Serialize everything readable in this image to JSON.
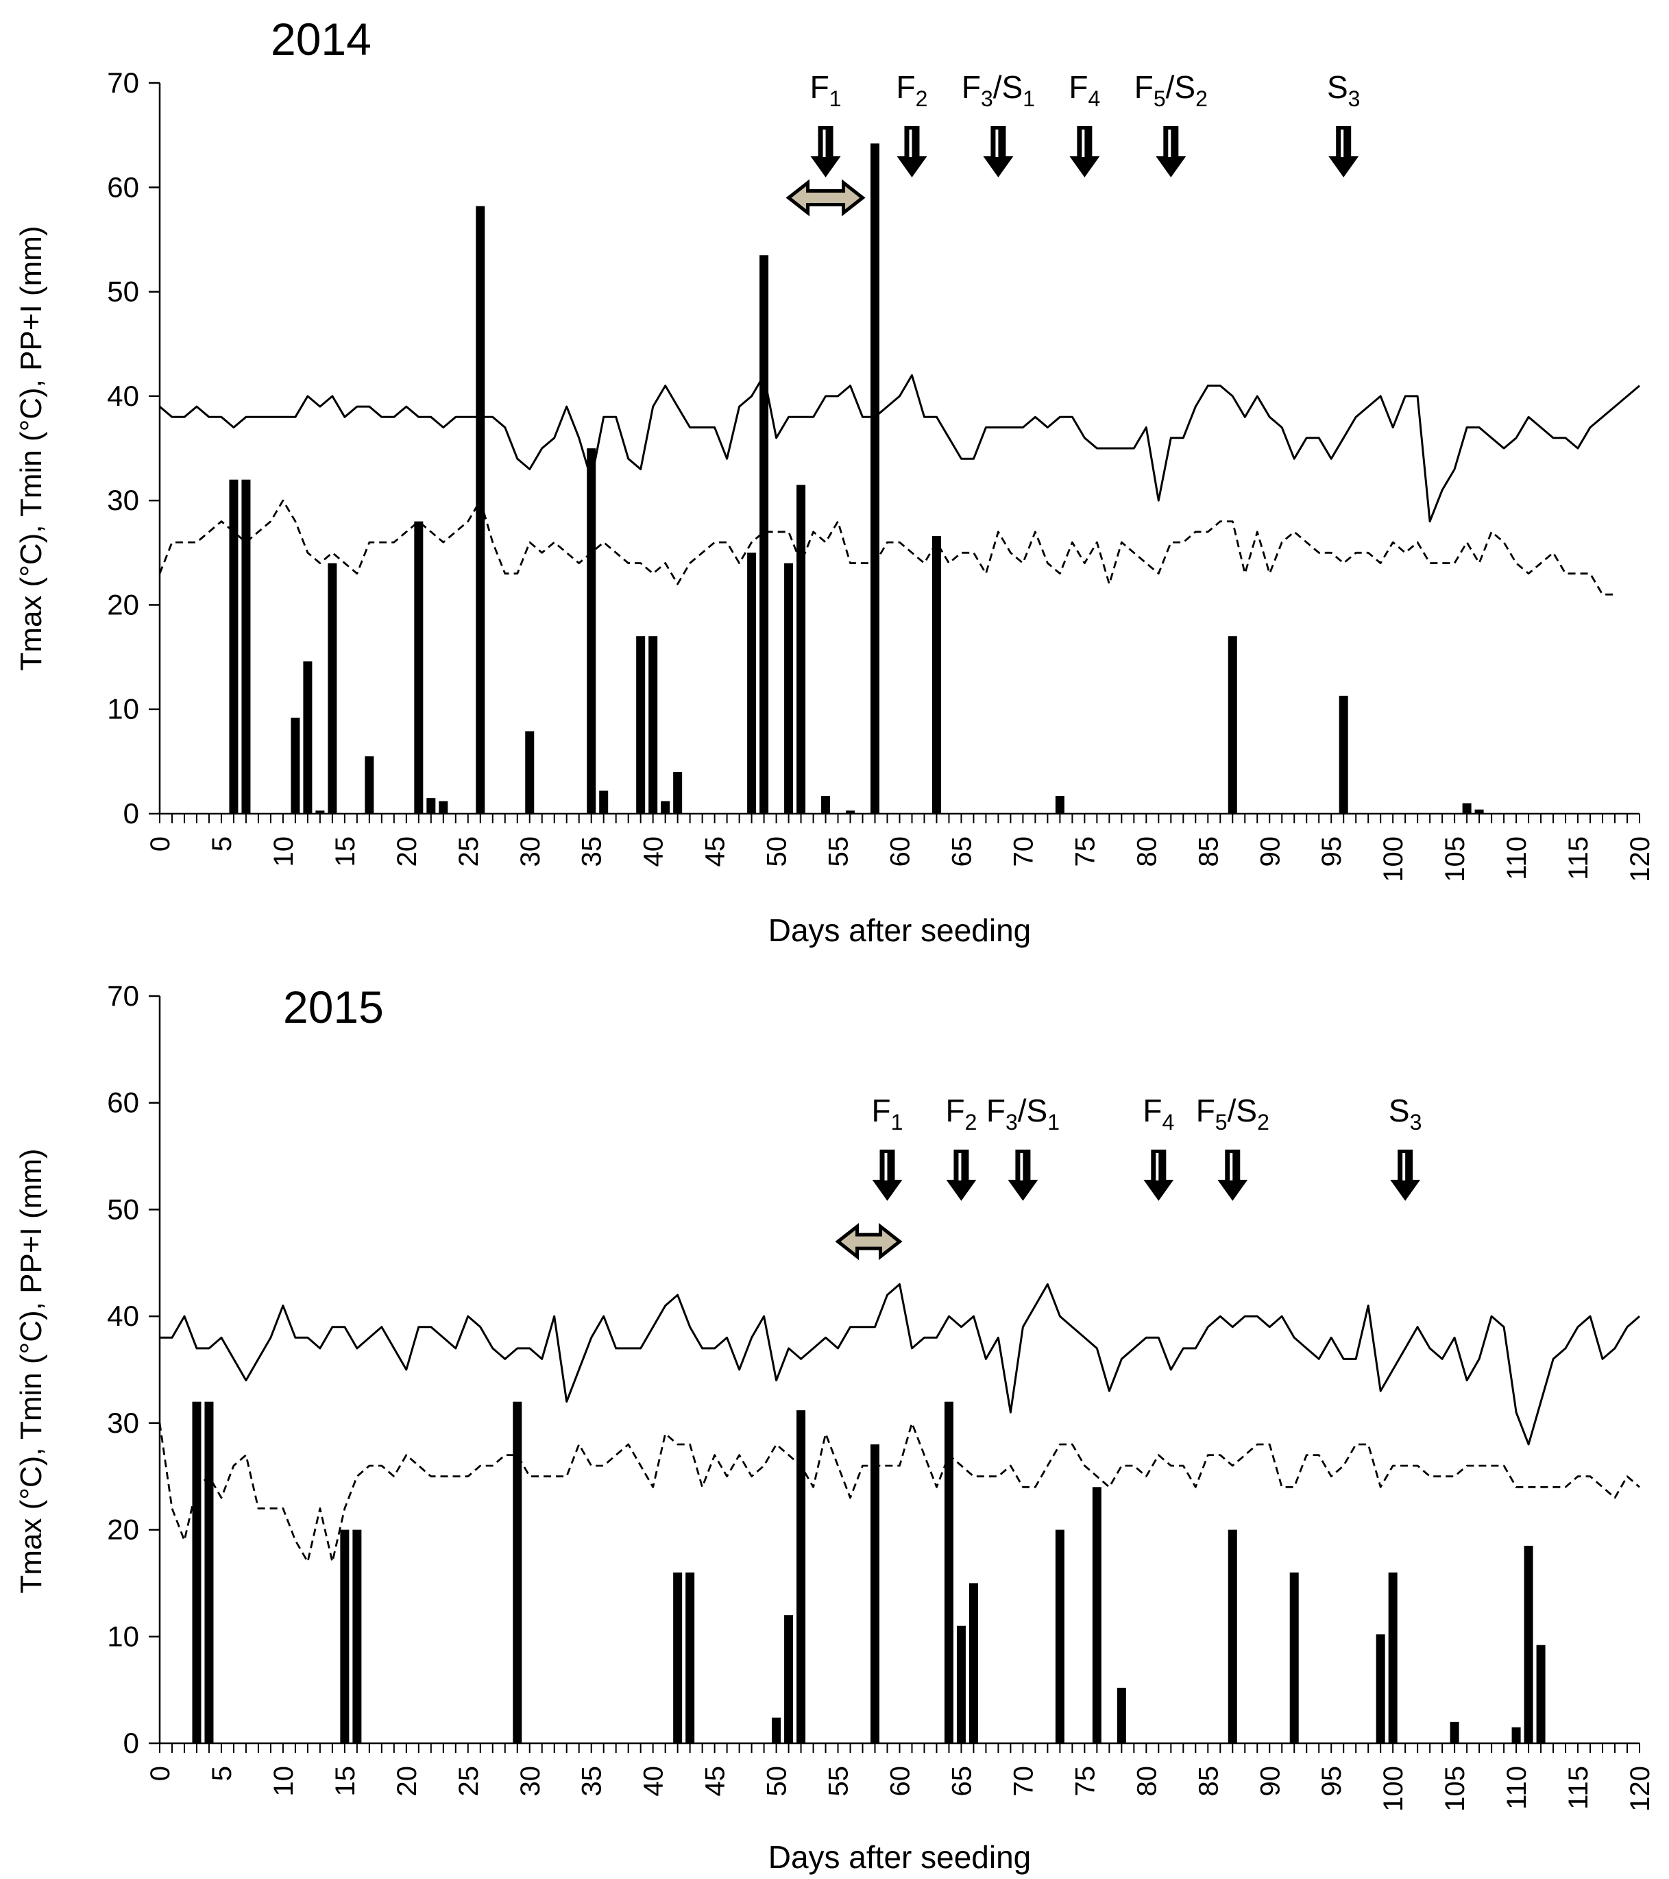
{
  "chart_data": [
    {
      "type": "bar+line",
      "title": "2014",
      "xlabel": "Days after seeding",
      "ylabel": "Tmax (°C), Tmin (°C), PP+I (mm)",
      "xlim": [
        0,
        120
      ],
      "ylim": [
        0,
        70
      ],
      "xticks": [
        "0",
        "5",
        "10",
        "15",
        "20",
        "25",
        "30",
        "35",
        "40",
        "45",
        "50",
        "55",
        "60",
        "65",
        "70",
        "75",
        "80",
        "85",
        "90",
        "95",
        "100",
        "105",
        "110",
        "115",
        "120"
      ],
      "yticks": [
        "0",
        "10",
        "20",
        "30",
        "40",
        "50",
        "60",
        "70"
      ],
      "series": [
        {
          "name": "Tmax",
          "style": "solid line",
          "values": [
            39,
            38,
            38,
            39,
            38,
            38,
            37,
            38,
            38,
            38,
            38,
            38,
            40,
            39,
            40,
            38,
            39,
            39,
            38,
            38,
            39,
            38,
            38,
            37,
            38,
            38,
            38,
            38,
            37,
            34,
            33,
            35,
            36,
            39,
            36,
            32,
            38,
            38,
            34,
            33,
            39,
            41,
            39,
            37,
            37,
            37,
            34,
            39,
            40,
            42,
            36,
            38,
            38,
            38,
            40,
            40,
            41,
            38,
            38,
            39,
            40,
            42,
            38,
            38,
            36,
            34,
            34,
            37,
            37,
            37,
            37,
            38,
            37,
            38,
            38,
            36,
            35,
            35,
            35,
            35,
            37,
            30,
            36,
            36,
            39,
            41,
            41,
            40,
            38,
            40,
            38,
            37,
            34,
            36,
            36,
            34,
            36,
            38,
            39,
            40,
            37,
            40,
            40,
            28,
            31,
            33,
            37,
            37,
            36,
            35,
            36,
            38,
            37,
            36,
            36,
            35,
            37,
            38,
            39,
            40,
            41
          ]
        },
        {
          "name": "Tmin",
          "style": "dashed line",
          "values": [
            23,
            26,
            26,
            26,
            27,
            28,
            27,
            26,
            27,
            28,
            30,
            28,
            25,
            24,
            25,
            24,
            23,
            26,
            26,
            26,
            27,
            28,
            27,
            26,
            27,
            28,
            30,
            26,
            23,
            23,
            26,
            25,
            26,
            25,
            24,
            25,
            26,
            25,
            24,
            24,
            23,
            24,
            22,
            24,
            25,
            26,
            26,
            24,
            26,
            27,
            27,
            27,
            24,
            27,
            26,
            28,
            24,
            24,
            24,
            26,
            26,
            25,
            24,
            26,
            24,
            25,
            25,
            23,
            27,
            25,
            24,
            27,
            24,
            23,
            26,
            24,
            26,
            22,
            26,
            25,
            24,
            23,
            26,
            26,
            27,
            27,
            28,
            28,
            23,
            27,
            23,
            26,
            27,
            26,
            25,
            25,
            24,
            25,
            25,
            24,
            26,
            25,
            26,
            24,
            24,
            24,
            26,
            24,
            27,
            26,
            24,
            23,
            24,
            25,
            23,
            23,
            23,
            21,
            21
          ]
        },
        {
          "name": "PP+I",
          "style": "bars",
          "points": [
            [
              6,
              32
            ],
            [
              7,
              32
            ],
            [
              11,
              9.2
            ],
            [
              12,
              14.6
            ],
            [
              13,
              0.3
            ],
            [
              14,
              24
            ],
            [
              17,
              5.5
            ],
            [
              21,
              28
            ],
            [
              22,
              1.5
            ],
            [
              23,
              1.2
            ],
            [
              26,
              58.2
            ],
            [
              30,
              7.9
            ],
            [
              35,
              35
            ],
            [
              36,
              2.2
            ],
            [
              39,
              17
            ],
            [
              40,
              17
            ],
            [
              41,
              1.2
            ],
            [
              42,
              4
            ],
            [
              48,
              25
            ],
            [
              49,
              53.5
            ],
            [
              51,
              24
            ],
            [
              52,
              31.5
            ],
            [
              54,
              1.7
            ],
            [
              56,
              0.3
            ],
            [
              58,
              64.2
            ],
            [
              63,
              26.6
            ],
            [
              73,
              1.7
            ],
            [
              87,
              17
            ],
            [
              96,
              11.3
            ],
            [
              106,
              1
            ],
            [
              107,
              0.4
            ]
          ]
        }
      ],
      "annotations": [
        {
          "label": "F1",
          "base": "F",
          "sub": "1",
          "day": 54
        },
        {
          "label": "F2",
          "base": "F",
          "sub": "2",
          "day": 61
        },
        {
          "label": "F3/S1",
          "base": "F",
          "sub": "3",
          "base2": "/S",
          "sub2": "1",
          "day": 68
        },
        {
          "label": "F4",
          "base": "F",
          "sub": "4",
          "day": 75
        },
        {
          "label": "F5/S2",
          "base": "F",
          "sub": "5",
          "base2": "/S",
          "sub2": "2",
          "day": 82
        },
        {
          "label": "S3",
          "base": "S",
          "sub": "3",
          "day": 96
        }
      ],
      "double_arrow": {
        "from_day": 51,
        "to_day": 57,
        "y": 59
      }
    },
    {
      "type": "bar+line",
      "title": "2015",
      "xlabel": "Days after seeding",
      "ylabel": "Tmax (°C), Tmin (°C), PP+I (mm)",
      "xlim": [
        0,
        120
      ],
      "ylim": [
        0,
        70
      ],
      "xticks": [
        "0",
        "5",
        "10",
        "15",
        "20",
        "25",
        "30",
        "35",
        "40",
        "45",
        "50",
        "55",
        "60",
        "65",
        "70",
        "75",
        "80",
        "85",
        "90",
        "95",
        "100",
        "105",
        "110",
        "115",
        "120"
      ],
      "yticks": [
        "0",
        "10",
        "20",
        "30",
        "40",
        "50",
        "60",
        "70"
      ],
      "series": [
        {
          "name": "Tmax",
          "style": "solid line",
          "values": [
            38,
            38,
            40,
            37,
            37,
            38,
            36,
            34,
            36,
            38,
            41,
            38,
            38,
            37,
            39,
            39,
            37,
            38,
            39,
            37,
            35,
            39,
            39,
            38,
            37,
            40,
            39,
            37,
            36,
            37,
            37,
            36,
            40,
            32,
            35,
            38,
            40,
            37,
            37,
            37,
            39,
            41,
            42,
            39,
            37,
            37,
            38,
            35,
            38,
            40,
            34,
            37,
            36,
            37,
            38,
            37,
            39,
            39,
            39,
            42,
            43,
            37,
            38,
            38,
            40,
            39,
            40,
            36,
            38,
            31,
            39,
            41,
            43,
            40,
            39,
            38,
            37,
            33,
            36,
            37,
            38,
            38,
            35,
            37,
            37,
            39,
            40,
            39,
            40,
            40,
            39,
            40,
            38,
            37,
            36,
            38,
            36,
            36,
            41,
            33,
            35,
            37,
            39,
            37,
            36,
            38,
            34,
            36,
            40,
            39,
            31,
            28,
            32,
            36,
            37,
            39,
            40,
            36,
            37,
            39,
            40
          ]
        },
        {
          "name": "Tmin",
          "style": "dashed line",
          "values": [
            30,
            22,
            19,
            24,
            25,
            23,
            26,
            27,
            22,
            22,
            22,
            19,
            17,
            22,
            17,
            22,
            25,
            26,
            26,
            25,
            27,
            26,
            25,
            25,
            25,
            25,
            26,
            26,
            27,
            27,
            25,
            25,
            25,
            25,
            28,
            26,
            26,
            27,
            28,
            26,
            24,
            29,
            28,
            28,
            24,
            27,
            25,
            27,
            25,
            26,
            28,
            27,
            26,
            24,
            29,
            26,
            23,
            26,
            26,
            26,
            26,
            30,
            27,
            24,
            27,
            26,
            25,
            25,
            25,
            26,
            24,
            24,
            26,
            28,
            28,
            26,
            25,
            24,
            26,
            26,
            25,
            27,
            26,
            26,
            24,
            27,
            27,
            26,
            27,
            28,
            28,
            24,
            24,
            27,
            27,
            25,
            26,
            28,
            28,
            24,
            26,
            26,
            26,
            25,
            25,
            25,
            26,
            26,
            26,
            26,
            24,
            24,
            24,
            24,
            24,
            25,
            25,
            24,
            23,
            25,
            24
          ]
        },
        {
          "name": "PP+I",
          "style": "bars",
          "points": [
            [
              3,
              32
            ],
            [
              4,
              32
            ],
            [
              15,
              20
            ],
            [
              16,
              20
            ],
            [
              29,
              32
            ],
            [
              42,
              16
            ],
            [
              43,
              16
            ],
            [
              50,
              2.4
            ],
            [
              51,
              12
            ],
            [
              52,
              31.2
            ],
            [
              58,
              28
            ],
            [
              64,
              32
            ],
            [
              65,
              11
            ],
            [
              66,
              15
            ],
            [
              73,
              20
            ],
            [
              76,
              24
            ],
            [
              78,
              5.2
            ],
            [
              87,
              20
            ],
            [
              92,
              16
            ],
            [
              99,
              10.2
            ],
            [
              100,
              16
            ],
            [
              105,
              2
            ],
            [
              110,
              1.5
            ],
            [
              111,
              18.5
            ],
            [
              112,
              9.2
            ]
          ]
        }
      ],
      "annotations": [
        {
          "label": "F1",
          "base": "F",
          "sub": "1",
          "day": 59
        },
        {
          "label": "F2",
          "base": "F",
          "sub": "2",
          "day": 65
        },
        {
          "label": "F3/S1",
          "base": "F",
          "sub": "3",
          "base2": "/S",
          "sub2": "1",
          "day": 70
        },
        {
          "label": "F4",
          "base": "F",
          "sub": "4",
          "day": 81
        },
        {
          "label": "F5/S2",
          "base": "F",
          "sub": "5",
          "base2": "/S",
          "sub2": "2",
          "day": 87
        },
        {
          "label": "S3",
          "base": "S",
          "sub": "3",
          "day": 101
        }
      ],
      "double_arrow": {
        "from_day": 55,
        "to_day": 60,
        "y": 47
      }
    }
  ],
  "colors": {
    "lines": "#000000",
    "bars": "#000000",
    "double_arrow_fill": "#c8bfa6"
  }
}
